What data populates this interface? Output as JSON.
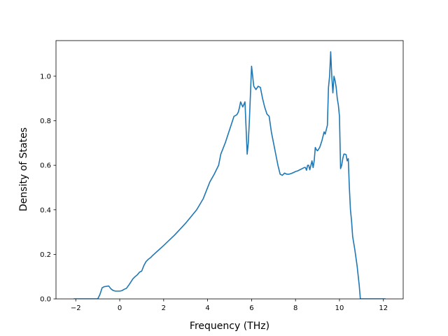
{
  "chart_data": {
    "type": "line",
    "xlabel": "Frequency (THz)",
    "ylabel": "Density of States",
    "xlim": [
      -2.9,
      12.9
    ],
    "ylim": [
      0.0,
      1.16
    ],
    "xticks": [
      -2,
      0,
      2,
      4,
      6,
      8,
      10,
      12
    ],
    "xtick_labels": [
      "−2",
      "0",
      "2",
      "4",
      "6",
      "8",
      "10",
      "12"
    ],
    "yticks": [
      0.0,
      0.2,
      0.4,
      0.6,
      0.8,
      1.0
    ],
    "ytick_labels": [
      "0.0",
      "0.2",
      "0.4",
      "0.6",
      "0.8",
      "1.0"
    ],
    "grid": false,
    "line_color": "#1f77b4",
    "series": [
      {
        "x": [
          -2.1,
          -1.8,
          -1.5,
          -1.2,
          -1.0,
          -0.9,
          -0.8,
          -0.7,
          -0.5,
          -0.4,
          -0.3,
          -0.2,
          -0.1,
          0.0,
          0.1,
          0.2,
          0.3,
          0.4,
          0.5,
          0.6,
          0.7,
          0.8,
          0.9,
          1.0,
          1.1,
          1.2,
          1.3,
          1.4,
          1.5,
          1.7,
          2.0,
          2.5,
          3.0,
          3.5,
          3.8,
          4.0,
          4.1,
          4.3,
          4.5,
          4.6,
          4.8,
          5.0,
          5.1,
          5.2,
          5.3,
          5.35,
          5.4,
          5.45,
          5.5,
          5.6,
          5.7,
          5.8,
          5.85,
          5.9,
          6.0,
          6.1,
          6.2,
          6.3,
          6.4,
          6.5,
          6.6,
          6.7,
          6.8,
          6.9,
          7.0,
          7.1,
          7.2,
          7.3,
          7.4,
          7.5,
          7.6,
          7.7,
          7.8,
          7.9,
          8.0,
          8.1,
          8.2,
          8.3,
          8.4,
          8.45,
          8.5,
          8.55,
          8.6,
          8.65,
          8.7,
          8.75,
          8.8,
          8.85,
          8.9,
          8.95,
          9.0,
          9.1,
          9.2,
          9.3,
          9.35,
          9.4,
          9.45,
          9.5,
          9.55,
          9.6,
          9.65,
          9.7,
          9.75,
          9.8,
          9.85,
          9.9,
          9.95,
          10.0,
          10.05,
          10.1,
          10.15,
          10.2,
          10.25,
          10.3,
          10.35,
          10.4,
          10.45,
          10.5,
          10.55,
          10.6,
          10.7,
          10.8,
          10.9,
          10.95,
          11.0,
          11.05,
          11.5,
          12.0,
          12.1
        ],
        "values": [
          0.0,
          0.0,
          0.0,
          0.0,
          0.0,
          0.02,
          0.05,
          0.055,
          0.058,
          0.045,
          0.038,
          0.035,
          0.035,
          0.035,
          0.037,
          0.043,
          0.047,
          0.06,
          0.075,
          0.09,
          0.1,
          0.108,
          0.12,
          0.125,
          0.15,
          0.168,
          0.178,
          0.185,
          0.195,
          0.213,
          0.24,
          0.287,
          0.34,
          0.4,
          0.45,
          0.5,
          0.525,
          0.56,
          0.6,
          0.65,
          0.7,
          0.76,
          0.79,
          0.82,
          0.825,
          0.83,
          0.84,
          0.86,
          0.885,
          0.862,
          0.885,
          0.65,
          0.7,
          0.8,
          1.045,
          0.955,
          0.94,
          0.955,
          0.95,
          0.9,
          0.86,
          0.83,
          0.82,
          0.75,
          0.7,
          0.65,
          0.6,
          0.56,
          0.555,
          0.565,
          0.56,
          0.56,
          0.563,
          0.567,
          0.572,
          0.575,
          0.58,
          0.585,
          0.59,
          0.59,
          0.578,
          0.6,
          0.6,
          0.58,
          0.6,
          0.62,
          0.59,
          0.62,
          0.68,
          0.67,
          0.665,
          0.68,
          0.71,
          0.75,
          0.74,
          0.76,
          0.78,
          0.95,
          1.0,
          1.11,
          1.0,
          0.925,
          1.0,
          0.98,
          0.95,
          0.9,
          0.87,
          0.82,
          0.585,
          0.6,
          0.63,
          0.65,
          0.65,
          0.648,
          0.62,
          0.63,
          0.5,
          0.4,
          0.35,
          0.28,
          0.22,
          0.15,
          0.06,
          0.0,
          0.0,
          0.0,
          0.0,
          0.0,
          0.0
        ]
      }
    ]
  }
}
